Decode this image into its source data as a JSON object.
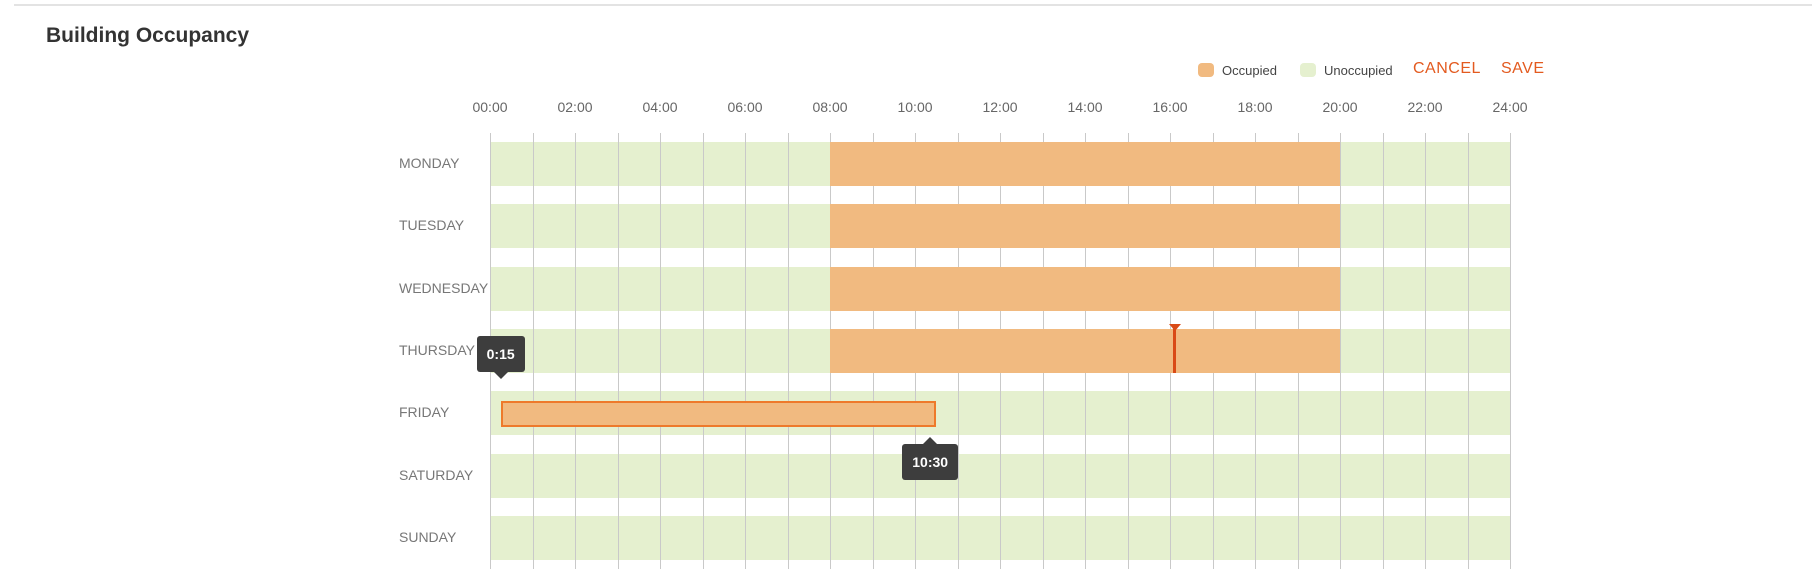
{
  "page": {
    "title": "Building Occupancy"
  },
  "legend": {
    "occupied_label": "Occupied",
    "unoccupied_label": "Unoccupied",
    "occupied_color": "#f1ba80",
    "unoccupied_color": "#e5f0cf"
  },
  "actions": {
    "cancel_label": "CANCEL",
    "save_label": "SAVE",
    "accent_color": "#e35a1f"
  },
  "schedule": {
    "hour_labels": [
      "00:00",
      "02:00",
      "04:00",
      "06:00",
      "08:00",
      "10:00",
      "12:00",
      "14:00",
      "16:00",
      "18:00",
      "20:00",
      "22:00",
      "24:00"
    ],
    "days": [
      {
        "name": "MONDAY",
        "occupied": [
          {
            "start": 8,
            "end": 20
          }
        ]
      },
      {
        "name": "TUESDAY",
        "occupied": [
          {
            "start": 8,
            "end": 20
          }
        ]
      },
      {
        "name": "WEDNESDAY",
        "occupied": [
          {
            "start": 8,
            "end": 20
          }
        ]
      },
      {
        "name": "THURSDAY",
        "occupied": [
          {
            "start": 8,
            "end": 20
          }
        ]
      },
      {
        "name": "FRIDAY",
        "occupied": [
          {
            "start": 0.25,
            "end": 10.5,
            "selected": true
          }
        ]
      },
      {
        "name": "SATURDAY",
        "occupied": []
      },
      {
        "name": "SUNDAY",
        "occupied": []
      }
    ],
    "thursday_cursor_hour": 16.1,
    "selection_tooltips": {
      "start_label": "0:15",
      "end_label": "10:30"
    }
  }
}
